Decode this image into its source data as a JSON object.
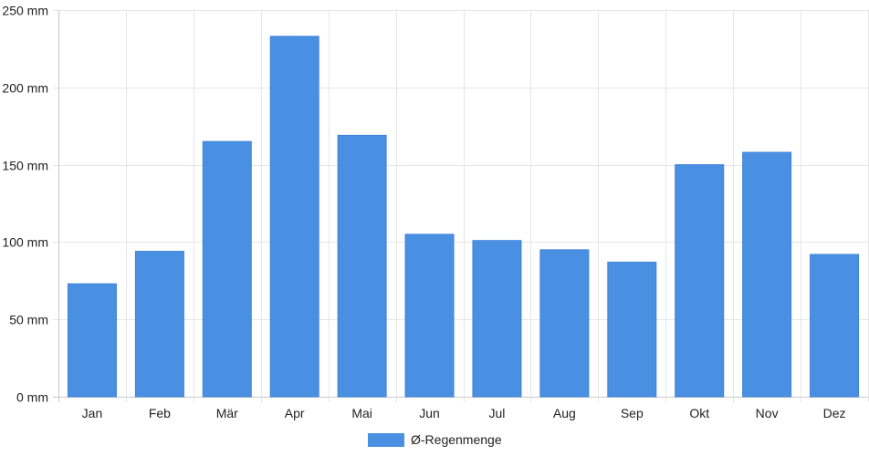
{
  "chart_data": {
    "type": "bar",
    "categories": [
      "Jan",
      "Feb",
      "Mär",
      "Apr",
      "Mai",
      "Jun",
      "Jul",
      "Aug",
      "Sep",
      "Okt",
      "Nov",
      "Dez"
    ],
    "series": [
      {
        "name": "Ø-Regenmenge",
        "color": "#4a90e2",
        "values": [
          73,
          94,
          165,
          233,
          169,
          105,
          101,
          95,
          87,
          150,
          158,
          92
        ]
      }
    ],
    "ylim": [
      0,
      250
    ],
    "yticks": [
      0,
      50,
      100,
      150,
      200,
      250
    ],
    "ytick_labels": [
      "0 mm",
      "50 mm",
      "100 mm",
      "150 mm",
      "200 mm",
      "250 mm"
    ],
    "grid": true,
    "legend_position": "bottom"
  }
}
